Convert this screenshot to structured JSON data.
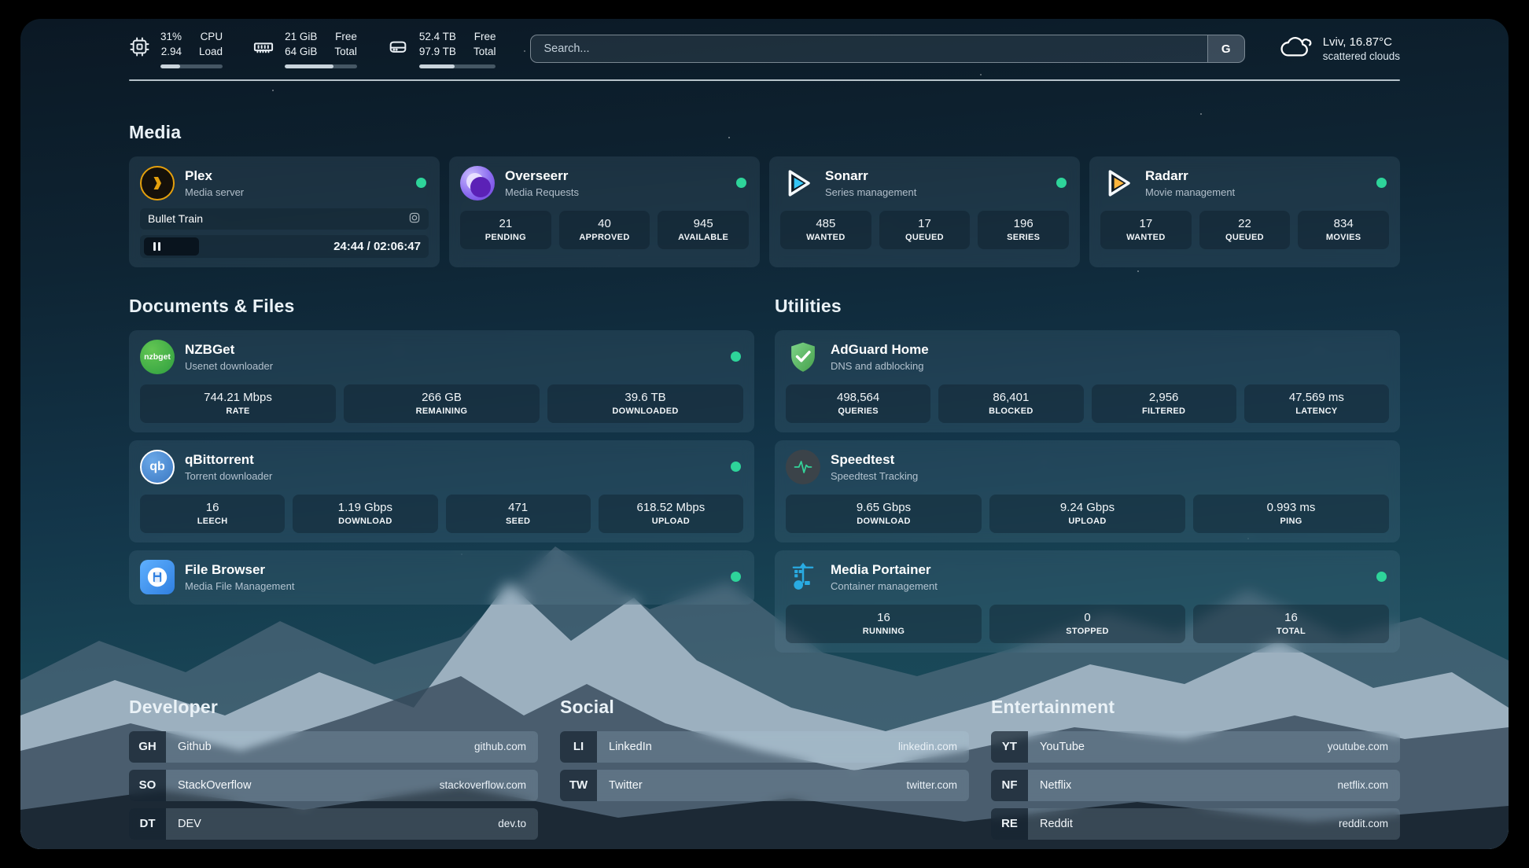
{
  "topbar": {
    "cpu": {
      "icon": "cpu-chip-icon",
      "values": [
        "31%",
        "2.94"
      ],
      "labels": [
        "CPU",
        "Load"
      ],
      "progress_pct": 31
    },
    "memory": {
      "icon": "ram-icon",
      "values": [
        "21 GiB",
        "64 GiB"
      ],
      "labels": [
        "Free",
        "Total"
      ],
      "progress_pct": 67
    },
    "disk": {
      "icon": "hard-drive-icon",
      "values": [
        "52.4 TB",
        "97.9 TB"
      ],
      "labels": [
        "Free",
        "Total"
      ],
      "progress_pct": 46
    },
    "search": {
      "placeholder": "Search...",
      "engine_button": "G"
    },
    "weather": {
      "icon": "cloud-icon",
      "location_temp": "Lviv, 16.87°C",
      "condition": "scattered clouds"
    }
  },
  "media": {
    "title": "Media",
    "plex": {
      "name": "Plex",
      "desc": "Media server",
      "status": "online",
      "now_playing": {
        "title": "Bullet Train",
        "time": "24:44 / 02:06:47",
        "progress_pct": 20,
        "state": "paused"
      }
    },
    "overseerr": {
      "name": "Overseerr",
      "desc": "Media Requests",
      "status": "online",
      "stats": [
        {
          "value": "21",
          "label": "PENDING"
        },
        {
          "value": "40",
          "label": "APPROVED"
        },
        {
          "value": "945",
          "label": "AVAILABLE"
        }
      ]
    },
    "sonarr": {
      "name": "Sonarr",
      "desc": "Series management",
      "status": "online",
      "stats": [
        {
          "value": "485",
          "label": "WANTED"
        },
        {
          "value": "17",
          "label": "QUEUED"
        },
        {
          "value": "196",
          "label": "SERIES"
        }
      ]
    },
    "radarr": {
      "name": "Radarr",
      "desc": "Movie management",
      "status": "online",
      "stats": [
        {
          "value": "17",
          "label": "WANTED"
        },
        {
          "value": "22",
          "label": "QUEUED"
        },
        {
          "value": "834",
          "label": "MOVIES"
        }
      ]
    }
  },
  "documents": {
    "title": "Documents & Files",
    "nzbget": {
      "name": "NZBGet",
      "desc": "Usenet downloader",
      "status": "online",
      "icon_text": "nzbget",
      "stats": [
        {
          "value": "744.21 Mbps",
          "label": "RATE"
        },
        {
          "value": "266 GB",
          "label": "REMAINING"
        },
        {
          "value": "39.6 TB",
          "label": "DOWNLOADED"
        }
      ]
    },
    "qbittorrent": {
      "name": "qBittorrent",
      "desc": "Torrent downloader",
      "status": "online",
      "icon_text": "qb",
      "stats": [
        {
          "value": "16",
          "label": "LEECH"
        },
        {
          "value": "1.19 Gbps",
          "label": "DOWNLOAD"
        },
        {
          "value": "471",
          "label": "SEED"
        },
        {
          "value": "618.52 Mbps",
          "label": "UPLOAD"
        }
      ]
    },
    "filebrowser": {
      "name": "File Browser",
      "desc": "Media File Management",
      "status": "online"
    }
  },
  "utilities": {
    "title": "Utilities",
    "adguard": {
      "name": "AdGuard Home",
      "desc": "DNS and adblocking",
      "status": "online",
      "stats": [
        {
          "value": "498,564",
          "label": "QUERIES"
        },
        {
          "value": "86,401",
          "label": "BLOCKED"
        },
        {
          "value": "2,956",
          "label": "FILTERED"
        },
        {
          "value": "47.569 ms",
          "label": "LATENCY"
        }
      ]
    },
    "speedtest": {
      "name": "Speedtest",
      "desc": "Speedtest Tracking",
      "stats": [
        {
          "value": "9.65 Gbps",
          "label": "DOWNLOAD"
        },
        {
          "value": "9.24 Gbps",
          "label": "UPLOAD"
        },
        {
          "value": "0.993 ms",
          "label": "PING"
        }
      ]
    },
    "portainer": {
      "name": "Media Portainer",
      "desc": "Container management",
      "status": "online",
      "stats": [
        {
          "value": "16",
          "label": "RUNNING"
        },
        {
          "value": "0",
          "label": "STOPPED"
        },
        {
          "value": "16",
          "label": "TOTAL"
        }
      ]
    }
  },
  "links": {
    "developer": {
      "title": "Developer",
      "items": [
        {
          "abbr": "GH",
          "name": "Github",
          "url": "github.com"
        },
        {
          "abbr": "SO",
          "name": "StackOverflow",
          "url": "stackoverflow.com"
        },
        {
          "abbr": "DT",
          "name": "DEV",
          "url": "dev.to"
        }
      ]
    },
    "social": {
      "title": "Social",
      "items": [
        {
          "abbr": "LI",
          "name": "LinkedIn",
          "url": "linkedin.com"
        },
        {
          "abbr": "TW",
          "name": "Twitter",
          "url": "twitter.com"
        }
      ]
    },
    "entertainment": {
      "title": "Entertainment",
      "items": [
        {
          "abbr": "YT",
          "name": "YouTube",
          "url": "youtube.com"
        },
        {
          "abbr": "NF",
          "name": "Netflix",
          "url": "netflix.com"
        },
        {
          "abbr": "RE",
          "name": "Reddit",
          "url": "reddit.com"
        }
      ]
    }
  },
  "colors": {
    "status_online": "#2ed49a",
    "plex_amber": "#e5a00d",
    "sonarr_cyan": "#35c5f4",
    "radarr_amber": "#ffb53c",
    "nzbget_green": "#2e9e3f",
    "qbittorrent_blue": "#3b78c2",
    "adguard_green": "#56b15c",
    "speedtest_green": "#34d399",
    "portainer_blue": "#29abe2",
    "filebrowser_blue": "#3f8fe8"
  }
}
